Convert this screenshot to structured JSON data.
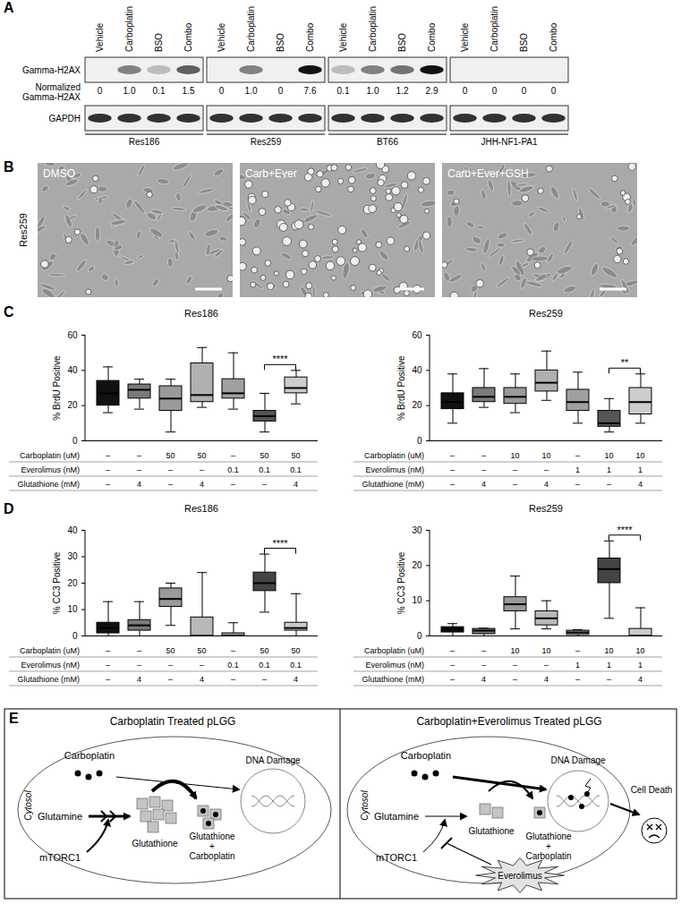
{
  "panel_labels": [
    "A",
    "B",
    "C",
    "D",
    "E"
  ],
  "blot": {
    "lanes": [
      "Vehicle",
      "Carboplatin",
      "BSO",
      "Combo"
    ],
    "row_labels": {
      "gamma": "Gamma-H2AX",
      "normalized": "Normalized Gamma-H2AX",
      "loading": "GAPDH"
    },
    "cell_lines": [
      {
        "name": "Res186",
        "normalized": [
          "0",
          "1.0",
          "0.1",
          "1.5"
        ]
      },
      {
        "name": "Res259",
        "normalized": [
          "0",
          "1.0",
          "0",
          "7.6"
        ]
      },
      {
        "name": "BT66",
        "normalized": [
          "0.1",
          "1.0",
          "1.2",
          "2.9"
        ]
      },
      {
        "name": "JHH-NF1-PA1",
        "normalized": [
          "0",
          "0",
          "0",
          "0"
        ]
      }
    ]
  },
  "micrographs": {
    "cell_line": "Res259",
    "panels": [
      "DMSO",
      "Carb+Ever",
      "Carb+Ever+GSH"
    ]
  },
  "chart_data": [
    {
      "type": "box",
      "title": "Res186",
      "y_label": "% BrdU Positive",
      "categories": [
        null,
        null,
        null,
        null,
        null,
        null,
        null
      ],
      "min": [
        16,
        18,
        5,
        19,
        18,
        5,
        21
      ],
      "q1": [
        20,
        24,
        17,
        22,
        24,
        11,
        27
      ],
      "median": [
        27,
        29,
        24,
        26,
        27,
        14,
        30
      ],
      "q3": [
        34,
        32,
        31,
        44,
        35,
        17,
        36
      ],
      "max": [
        42,
        35,
        35,
        53,
        50,
        27,
        40
      ],
      "colors": [
        "#111111",
        "#7a7a7a",
        "#9a9a9a",
        "#b0b0b0",
        "#a0a0a0",
        "#555555",
        "#cccccc"
      ],
      "ylim": [
        0,
        60
      ],
      "yticks": [
        0,
        20,
        40,
        60
      ],
      "tick_labels": "y",
      "treatments": [
        {
          "label": "Carboplatin (uM)",
          "values": [
            "–",
            "–",
            "50",
            "50",
            "–",
            "50",
            "50"
          ]
        },
        {
          "label": "Everolimus (nM)",
          "values": [
            "–",
            "–",
            "–",
            "–",
            "0.1",
            "0.1",
            "0.1"
          ]
        },
        {
          "label": "Glutathione (mM)",
          "values": [
            "–",
            "4",
            "–",
            "4",
            "–",
            "–",
            "4"
          ]
        }
      ],
      "annotations": [
        {
          "text": "****",
          "between": [
            5,
            6
          ]
        }
      ]
    },
    {
      "type": "box",
      "title": "Res259",
      "y_label": "% BrdU Positive",
      "categories": [
        null,
        null,
        null,
        null,
        null,
        null,
        null
      ],
      "min": [
        10,
        19,
        16,
        23,
        10,
        5,
        10
      ],
      "q1": [
        18,
        22,
        21,
        28,
        17,
        8,
        15
      ],
      "median": [
        22,
        25,
        25,
        33,
        22,
        10,
        22
      ],
      "q3": [
        27,
        30,
        30,
        40,
        29,
        17,
        30
      ],
      "max": [
        38,
        41,
        38,
        51,
        39,
        24,
        38
      ],
      "colors": [
        "#111111",
        "#7a7a7a",
        "#9a9a9a",
        "#b0b0b0",
        "#a0a0a0",
        "#555555",
        "#cccccc"
      ],
      "ylim": [
        0,
        60
      ],
      "yticks": [
        0,
        20,
        40,
        60
      ],
      "tick_labels": "y",
      "treatments": [
        {
          "label": "Carboplatin (uM)",
          "values": [
            "–",
            "–",
            "10",
            "10",
            "–",
            "10",
            "10"
          ]
        },
        {
          "label": "Everolimus (nM)",
          "values": [
            "–",
            "–",
            "–",
            "–",
            "1",
            "1",
            "1"
          ]
        },
        {
          "label": "Glutathione (mM)",
          "values": [
            "–",
            "4",
            "–",
            "4",
            "–",
            "–",
            "4"
          ]
        }
      ],
      "annotations": [
        {
          "text": "**",
          "between": [
            5,
            6
          ]
        }
      ]
    },
    {
      "type": "box",
      "title": "Res186",
      "y_label": "% CC3 Positive",
      "categories": [
        null,
        null,
        null,
        null,
        null,
        null,
        null
      ],
      "min": [
        0,
        0,
        4,
        0,
        0,
        9,
        0
      ],
      "q1": [
        1,
        2,
        11,
        0,
        0,
        17,
        2
      ],
      "median": [
        3,
        4,
        14,
        0,
        0,
        20,
        3
      ],
      "q3": [
        5,
        6,
        18,
        7,
        1,
        24,
        5
      ],
      "max": [
        13,
        13,
        20,
        24,
        5,
        31,
        16
      ],
      "colors": [
        "#111111",
        "#7a7a7a",
        "#9a9a9a",
        "#b8b8b8",
        "#a0a0a0",
        "#444444",
        "#cccccc"
      ],
      "ylim": [
        0,
        40
      ],
      "yticks": [
        0,
        10,
        20,
        30,
        40
      ],
      "tick_labels": "y",
      "treatments": [
        {
          "label": "Carboplatin (uM)",
          "values": [
            "–",
            "–",
            "50",
            "50",
            "–",
            "50",
            "50"
          ]
        },
        {
          "label": "Everolimus (nM)",
          "values": [
            "–",
            "–",
            "–",
            "–",
            "0.1",
            "0.1",
            "0.1"
          ]
        },
        {
          "label": "Glutathione (mM)",
          "values": [
            "–",
            "4",
            "–",
            "4",
            "–",
            "–",
            "4"
          ]
        }
      ],
      "annotations": [
        {
          "text": "****",
          "between": [
            5,
            6
          ]
        }
      ]
    },
    {
      "type": "box",
      "title": "Res259",
      "y_label": "% CC3 Positive",
      "categories": [
        null,
        null,
        null,
        null,
        null,
        null,
        null
      ],
      "min": [
        0,
        0,
        2,
        2,
        0,
        5,
        0
      ],
      "q1": [
        1,
        0.5,
        7,
        3,
        0.3,
        15,
        0
      ],
      "median": [
        2,
        1.5,
        9,
        5,
        1,
        19,
        0
      ],
      "q3": [
        2.5,
        2,
        11,
        7,
        1.5,
        22,
        2
      ],
      "max": [
        3.5,
        2.2,
        17,
        10,
        1.8,
        27,
        8
      ],
      "colors": [
        "#111111",
        "#7a7a7a",
        "#9a9a9a",
        "#b8b8b8",
        "#a0a0a0",
        "#444444",
        "#cccccc"
      ],
      "ylim": [
        0,
        30
      ],
      "yticks": [
        0,
        10,
        20,
        30
      ],
      "tick_labels": "y",
      "treatments": [
        {
          "label": "Carboplatin (uM)",
          "values": [
            "–",
            "–",
            "10",
            "10",
            "–",
            "10",
            "10"
          ]
        },
        {
          "label": "Everolimus (nM)",
          "values": [
            "–",
            "–",
            "–",
            "–",
            "1",
            "1",
            "1"
          ]
        },
        {
          "label": "Glutathione (mM)",
          "values": [
            "–",
            "4",
            "–",
            "4",
            "–",
            "–",
            "4"
          ]
        }
      ],
      "annotations": [
        {
          "text": "****",
          "between": [
            5,
            6
          ]
        }
      ]
    }
  ],
  "diagram": {
    "panels": [
      {
        "title": "Carboplatin Treated pLGG",
        "cytosol": "Cytosol",
        "drug": "Carboplatin",
        "precursor": "Glutamine",
        "regulator": "mTORC1",
        "antioxidant": "Glutathione",
        "complex": "Glutathione + Carboplatin",
        "damage": "DNA Damage"
      },
      {
        "title": "Carboplatin+Everolimus Treated pLGG",
        "cytosol": "Cytosol",
        "drug": "Carboplatin",
        "precursor": "Glutamine",
        "regulator": "mTORC1",
        "antioxidant": "Glutathione",
        "complex": "Glutathione + Carboplatin",
        "damage": "DNA Damage",
        "inhibitor": "Everolimus",
        "outcome": "Cell Death"
      }
    ]
  }
}
